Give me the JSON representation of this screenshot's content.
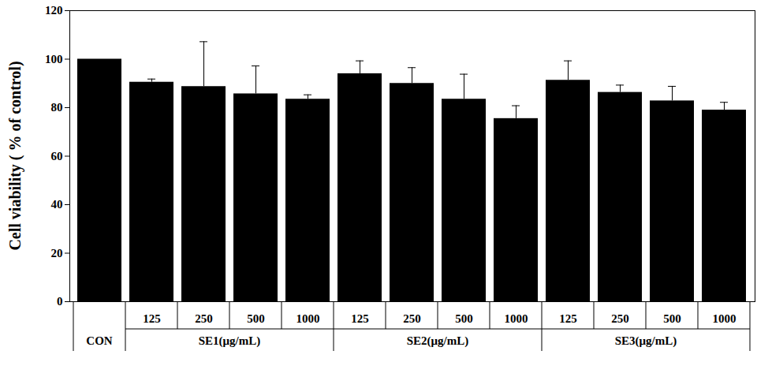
{
  "chart_data": {
    "type": "bar",
    "y_label": "Cell viability ( % of control)",
    "categories": [
      null,
      "125",
      "250",
      "500",
      "1000",
      "125",
      "250",
      "500",
      "1000",
      "125",
      "250",
      "500",
      "1000"
    ],
    "groups": [
      "CON",
      "SE1(μg/mL)",
      "SE1(μg/mL)",
      "SE1(μg/mL)",
      "SE1(μg/mL)",
      "SE2(μg/mL)",
      "SE2(μg/mL)",
      "SE2(μg/mL)",
      "SE2(μg/mL)",
      "SE3(μg/mL)",
      "SE3(μg/mL)",
      "SE3(μg/mL)",
      "SE3(μg/mL)"
    ],
    "values": [
      100,
      90.5,
      88.7,
      85.7,
      83.5,
      94,
      90,
      83.5,
      75.5,
      91.3,
      86.3,
      82.8,
      79
    ],
    "errors": [
      null,
      1.3,
      18.5,
      11.5,
      1.8,
      5.3,
      6.5,
      10.3,
      5.3,
      8,
      3,
      6,
      3.2
    ],
    "color": "#000000",
    "ylim": [
      0,
      120
    ],
    "yticks": [
      0,
      20,
      40,
      60,
      80,
      100,
      120
    ]
  }
}
